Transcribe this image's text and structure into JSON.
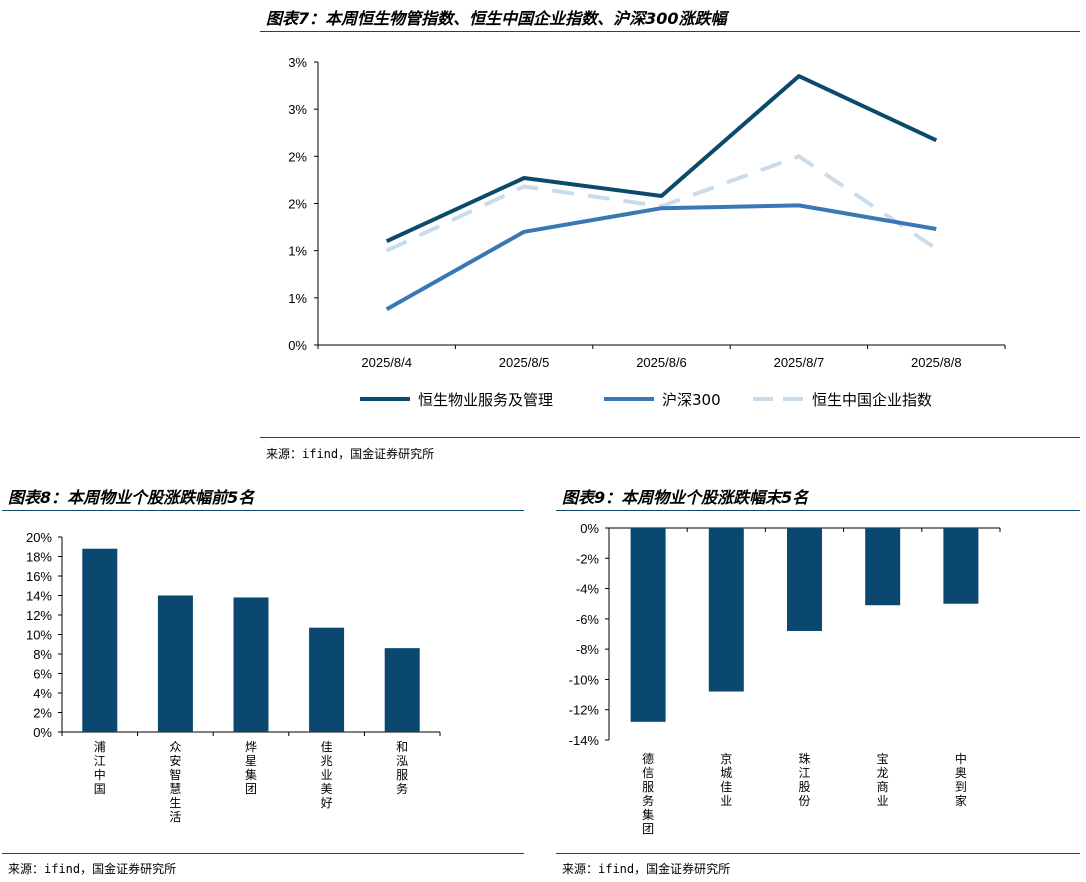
{
  "colors": {
    "accent": "#0e4a68",
    "series1": "#0c4a6b",
    "series2": "#3b77b5",
    "series3": "#c9dcec",
    "bar": "#0a4870"
  },
  "source_text": "来源：ifind，国金证券研究所",
  "chart_data": [
    {
      "type": "line",
      "title": "图表7：本周恒生物管指数、恒生中国企业指数、沪深300涨跌幅",
      "categories": [
        "2025/8/4",
        "2025/8/5",
        "2025/8/6",
        "2025/8/7",
        "2025/8/8"
      ],
      "series": [
        {
          "name": "恒生物业服务及管理",
          "values": [
            1.1,
            1.77,
            1.58,
            2.85,
            2.17
          ]
        },
        {
          "name": "沪深300",
          "values": [
            0.38,
            1.2,
            1.45,
            1.48,
            1.23
          ]
        },
        {
          "name": "恒生中国企业指数",
          "values": [
            1.0,
            1.68,
            1.47,
            2.0,
            1.02
          ]
        }
      ],
      "ytick_labels": [
        "0%",
        "1%",
        "1%",
        "2%",
        "2%",
        "3%",
        "3%"
      ],
      "ylim": [
        0,
        3
      ],
      "legend": "bottom"
    },
    {
      "type": "bar",
      "title": "图表8：本周物业个股涨跌幅前5名",
      "categories": [
        "浦江中国",
        "众安智慧生活",
        "烨星集团",
        "佳兆业美好",
        "和泓服务"
      ],
      "values": [
        18.8,
        14.0,
        13.8,
        10.7,
        8.6
      ],
      "ytick_labels": [
        "0%",
        "2%",
        "4%",
        "6%",
        "8%",
        "10%",
        "12%",
        "14%",
        "16%",
        "18%",
        "20%"
      ],
      "ylim": [
        0,
        20
      ]
    },
    {
      "type": "bar",
      "title": "图表9：本周物业个股涨跌幅末5名",
      "categories": [
        "德信服务集团",
        "京城佳业",
        "珠江股份",
        "宝龙商业",
        "中奥到家"
      ],
      "values": [
        -12.8,
        -10.8,
        -6.8,
        -5.1,
        -5.0
      ],
      "ytick_labels": [
        "0%",
        "-2%",
        "-4%",
        "-6%",
        "-8%",
        "-10%",
        "-12%",
        "-14%"
      ],
      "ylim": [
        -14,
        0
      ]
    }
  ]
}
